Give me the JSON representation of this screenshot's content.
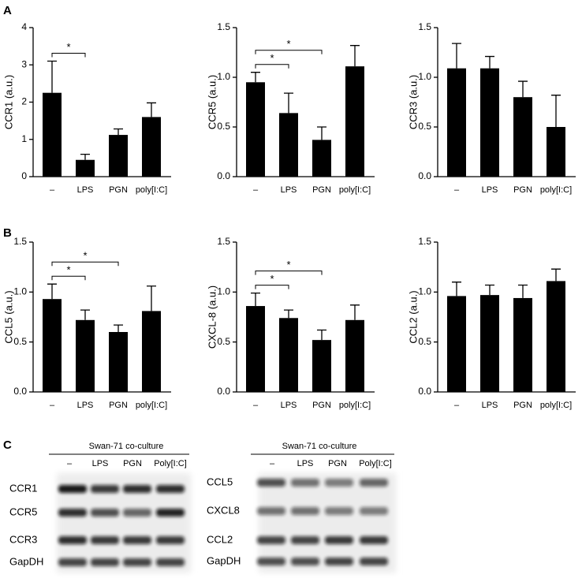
{
  "panel_labels": [
    "A",
    "B",
    "C"
  ],
  "chart_data": [
    {
      "type": "bar",
      "y_label": "CCR1 (a.u.)",
      "categories": [
        "–",
        "LPS",
        "PGN",
        "poly[I:C]"
      ],
      "values": [
        2.25,
        0.45,
        1.12,
        1.6
      ],
      "errors": [
        0.85,
        0.15,
        0.16,
        0.38
      ],
      "color": "#000000",
      "ylim": [
        0,
        4
      ],
      "yticks": [
        0,
        1,
        2,
        3,
        4
      ],
      "significance": [
        {
          "pair": [
            0,
            1
          ],
          "label": "*"
        }
      ]
    },
    {
      "type": "bar",
      "y_label": "CCR5 (a.u.)",
      "categories": [
        "–",
        "LPS",
        "PGN",
        "poly[I:C]"
      ],
      "values": [
        0.95,
        0.64,
        0.37,
        1.11
      ],
      "errors": [
        0.1,
        0.2,
        0.13,
        0.21
      ],
      "color": "#000000",
      "ylim": [
        0,
        1.5
      ],
      "yticks": [
        {
          "value": 0,
          "label": "0.0"
        },
        0.5,
        {
          "value": 1,
          "label": "1.0"
        },
        1.5
      ],
      "significance": [
        {
          "pair": [
            0,
            1
          ],
          "label": "*"
        },
        {
          "pair": [
            0,
            2
          ],
          "label": "*"
        }
      ]
    },
    {
      "type": "bar",
      "y_label": "CCR3 (a.u.)",
      "categories": [
        "–",
        "LPS",
        "PGN",
        "poly[I:C]"
      ],
      "values": [
        1.09,
        1.09,
        0.8,
        0.5
      ],
      "errors": [
        0.25,
        0.12,
        0.16,
        0.32
      ],
      "color": "#000000",
      "ylim": [
        0,
        1.5
      ],
      "yticks": [
        {
          "value": 0,
          "label": "0.0"
        },
        0.5,
        {
          "value": 1,
          "label": "1.0"
        },
        1.5
      ],
      "significance": []
    },
    {
      "type": "bar",
      "y_label": "CCL5 (a.u.)",
      "categories": [
        "–",
        "LPS",
        "PGN",
        "poly[I:C]"
      ],
      "values": [
        0.93,
        0.72,
        0.6,
        0.81
      ],
      "errors": [
        0.15,
        0.1,
        0.07,
        0.25
      ],
      "color": "#000000",
      "ylim": [
        0,
        1.5
      ],
      "yticks": [
        {
          "value": 0,
          "label": "0.0"
        },
        0.5,
        {
          "value": 1,
          "label": "1.0"
        },
        1.5
      ],
      "significance": [
        {
          "pair": [
            0,
            1
          ],
          "label": "*"
        },
        {
          "pair": [
            0,
            2
          ],
          "label": "*"
        }
      ]
    },
    {
      "type": "bar",
      "y_label": "CXCL-8 (a.u.)",
      "categories": [
        "–",
        "LPS",
        "PGN",
        "poly[I:C]"
      ],
      "values": [
        0.86,
        0.74,
        0.52,
        0.72
      ],
      "errors": [
        0.13,
        0.08,
        0.1,
        0.15
      ],
      "color": "#000000",
      "ylim": [
        0,
        1.5
      ],
      "yticks": [
        {
          "value": 0,
          "label": "0.0"
        },
        0.5,
        {
          "value": 1,
          "label": "1.0"
        },
        1.5
      ],
      "significance": [
        {
          "pair": [
            0,
            1
          ],
          "label": "*"
        },
        {
          "pair": [
            0,
            2
          ],
          "label": "*"
        }
      ]
    },
    {
      "type": "bar",
      "y_label": "CCL2 (a.u.)",
      "categories": [
        "–",
        "LPS",
        "PGN",
        "poly[I:C]"
      ],
      "values": [
        0.96,
        0.97,
        0.94,
        1.11
      ],
      "errors": [
        0.14,
        0.1,
        0.13,
        0.12
      ],
      "color": "#000000",
      "ylim": [
        0,
        1.5
      ],
      "yticks": [
        {
          "value": 0,
          "label": "0.0"
        },
        0.5,
        {
          "value": 1,
          "label": "1.0"
        },
        1.5
      ],
      "significance": []
    }
  ],
  "blots": [
    {
      "header": "Swan-71 co-culture",
      "lanes": [
        "–",
        "LPS",
        "PGN",
        "Poly[I:C]"
      ],
      "rows": [
        "CCR1",
        "CCR5",
        "CCR3",
        "GapDH"
      ]
    },
    {
      "header": "Swan-71 co-culture",
      "lanes": [
        "–",
        "LPS",
        "PGN",
        "Poly[I:C]"
      ],
      "rows": [
        "CCL5",
        "CXCL8",
        "CCL2",
        "GapDH"
      ]
    }
  ]
}
